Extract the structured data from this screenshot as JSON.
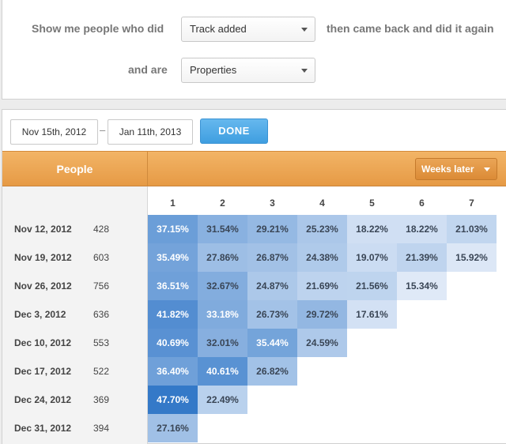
{
  "query": {
    "prefix": "Show me people who did",
    "event_select": "Track added",
    "suffix": "then came back and did it again",
    "and_are_label": "and are",
    "properties_select": "Properties"
  },
  "date_range": {
    "from": "Nov 15th, 2012",
    "separator": "–",
    "to": "Jan 11th, 2013",
    "done_label": "DONE"
  },
  "table": {
    "people_header": "People",
    "weeks_button": "Weeks later",
    "week_headers": [
      "1",
      "2",
      "3",
      "4",
      "5",
      "6",
      "7"
    ],
    "rows": [
      {
        "date": "Nov 12, 2012",
        "count": "428",
        "values": [
          "37.15%",
          "31.54%",
          "29.21%",
          "25.23%",
          "18.22%",
          "18.22%",
          "21.03%"
        ]
      },
      {
        "date": "Nov 19, 2012",
        "count": "603",
        "values": [
          "35.49%",
          "27.86%",
          "26.87%",
          "24.38%",
          "19.07%",
          "21.39%",
          "15.92%"
        ]
      },
      {
        "date": "Nov 26, 2012",
        "count": "756",
        "values": [
          "36.51%",
          "32.67%",
          "24.87%",
          "21.69%",
          "21.56%",
          "15.34%"
        ]
      },
      {
        "date": "Dec 3, 2012",
        "count": "636",
        "values": [
          "41.82%",
          "33.18%",
          "26.73%",
          "29.72%",
          "17.61%"
        ]
      },
      {
        "date": "Dec 10, 2012",
        "count": "553",
        "values": [
          "40.69%",
          "32.01%",
          "35.44%",
          "24.59%"
        ]
      },
      {
        "date": "Dec 17, 2012",
        "count": "522",
        "values": [
          "36.40%",
          "40.61%",
          "26.82%"
        ]
      },
      {
        "date": "Dec 24, 2012",
        "count": "369",
        "values": [
          "47.70%",
          "22.49%"
        ]
      },
      {
        "date": "Dec 31, 2012",
        "count": "394",
        "values": [
          "27.16%"
        ]
      }
    ]
  },
  "colors": {
    "accent_orange": "#e69a45",
    "done_blue": "#3f9ee0",
    "cell_darkest": "#3a80cc",
    "cell_lightest": "#e6eef9"
  }
}
